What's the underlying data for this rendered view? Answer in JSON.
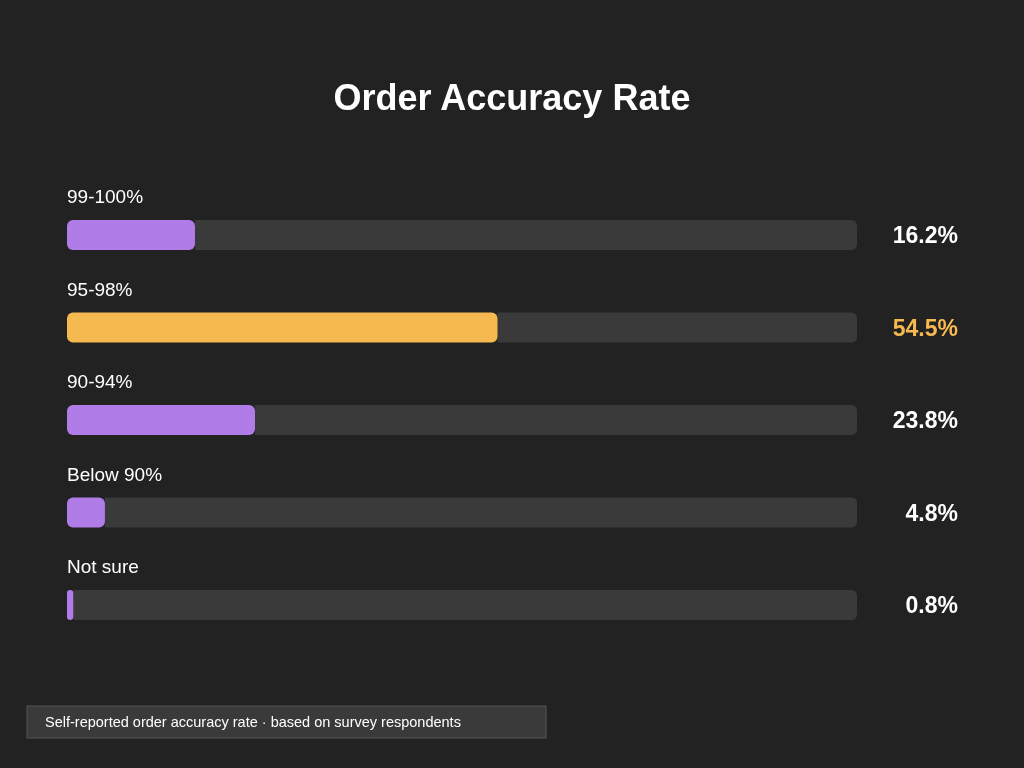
{
  "chart_data": {
    "type": "bar",
    "orientation": "horizontal",
    "title": "Order Accuracy Rate",
    "categories": [
      "99-100%",
      "95-98%",
      "90-94%",
      "Below 90%",
      "Not sure"
    ],
    "values": [
      16.2,
      54.5,
      23.8,
      4.8,
      0.8
    ],
    "value_labels": [
      "16.2%",
      "54.5%",
      "23.8%",
      "4.8%",
      "0.8%"
    ],
    "colors": [
      "#b07ce8",
      "#f6b94f",
      "#b07ce8",
      "#b07ce8",
      "#b07ce8"
    ],
    "xlim": [
      0,
      100
    ],
    "annotations": [
      "Self-reported order accuracy rate · based on survey respondents"
    ]
  }
}
